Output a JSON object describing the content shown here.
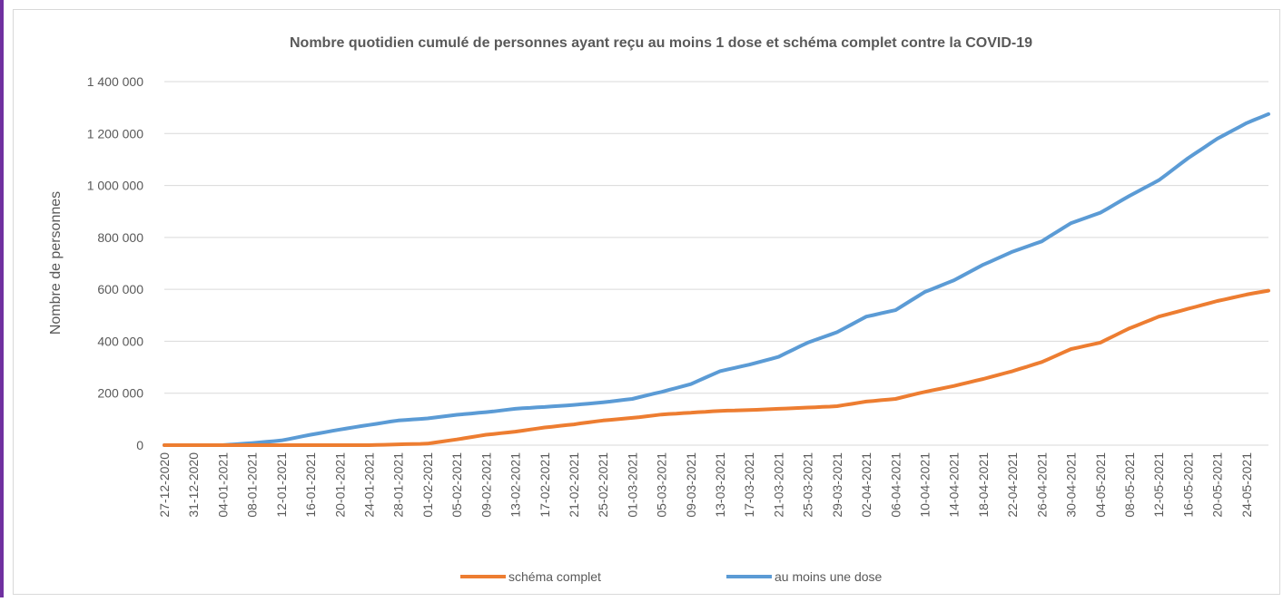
{
  "chart_data": {
    "type": "line",
    "title": "Nombre quotidien cumulé de personnes ayant reçu au moins 1 dose et schéma complet contre la COVID-19",
    "y_label": "Nombre de personnes",
    "categories": [
      "27-12-2020",
      null,
      null,
      null,
      "31-12-2020",
      null,
      null,
      null,
      "04-01-2021",
      null,
      null,
      null,
      "08-01-2021",
      null,
      null,
      null,
      "12-01-2021",
      null,
      null,
      null,
      "16-01-2021",
      null,
      null,
      null,
      "20-01-2021",
      null,
      null,
      null,
      "24-01-2021",
      null,
      null,
      null,
      "28-01-2021",
      null,
      null,
      null,
      "01-02-2021",
      null,
      null,
      null,
      "05-02-2021",
      null,
      null,
      null,
      "09-02-2021",
      null,
      null,
      null,
      "13-02-2021",
      null,
      null,
      null,
      "17-02-2021",
      null,
      null,
      null,
      "21-02-2021",
      null,
      null,
      null,
      "25-02-2021",
      null,
      null,
      null,
      "01-03-2021",
      null,
      null,
      null,
      "05-03-2021",
      null,
      null,
      null,
      "09-03-2021",
      null,
      null,
      null,
      "13-03-2021",
      null,
      null,
      null,
      "17-03-2021",
      null,
      null,
      null,
      "21-03-2021",
      null,
      null,
      null,
      "25-03-2021",
      null,
      null,
      null,
      "29-03-2021",
      null,
      null,
      null,
      "02-04-2021",
      null,
      null,
      null,
      "06-04-2021",
      null,
      null,
      null,
      "10-04-2021",
      null,
      null,
      null,
      "14-04-2021",
      null,
      null,
      null,
      "18-04-2021",
      null,
      null,
      null,
      "22-04-2021",
      null,
      null,
      null,
      "26-04-2021",
      null,
      null,
      null,
      "30-04-2021",
      null,
      null,
      null,
      "04-05-2021",
      null,
      null,
      null,
      "08-05-2021",
      null,
      null,
      null,
      "12-05-2021",
      null,
      null,
      null,
      "16-05-2021",
      null,
      null,
      null,
      "20-05-2021",
      null,
      null,
      null,
      "24-05-2021",
      null,
      null,
      null
    ],
    "series": [
      {
        "name": "schéma complet",
        "color": "#ed7d31",
        "values": [
          0,
          0,
          0,
          0,
          0,
          0,
          0,
          0,
          0,
          0,
          0,
          0,
          0,
          0,
          0,
          0,
          0,
          0,
          0,
          0,
          0,
          0,
          0,
          0,
          0,
          0,
          0,
          0,
          0,
          1000,
          1500,
          2000,
          3000,
          4000,
          4500,
          5000,
          6000,
          10000,
          14000,
          18000,
          22000,
          26500,
          31000,
          35500,
          40000,
          43000,
          46000,
          49000,
          52000,
          56000,
          60000,
          64000,
          68000,
          71000,
          74000,
          77000,
          80000,
          84000,
          87500,
          91500,
          95000,
          97500,
          100000,
          102500,
          105000,
          108000,
          111500,
          114500,
          118000,
          120000,
          121500,
          123500,
          125000,
          127000,
          128500,
          130500,
          132000,
          133000,
          133500,
          134500,
          135000,
          136000,
          137500,
          138500,
          140000,
          141000,
          142500,
          143500,
          145000,
          146000,
          147500,
          148500,
          150000,
          154500,
          159000,
          163500,
          168000,
          170500,
          173000,
          175500,
          178000,
          185000,
          191500,
          198500,
          205000,
          211000,
          216500,
          222500,
          228000,
          235000,
          241500,
          248500,
          255000,
          262500,
          270000,
          277500,
          285000,
          294000,
          302500,
          311500,
          320000,
          332500,
          345000,
          357500,
          370000,
          376000,
          382500,
          388500,
          395000,
          409000,
          422500,
          436500,
          450000,
          461000,
          472500,
          483500,
          495000,
          502500,
          510000,
          517500,
          525000,
          532500,
          540000,
          547500,
          555000,
          561000,
          567500,
          573500,
          580000,
          585000,
          590000,
          595000
        ]
      },
      {
        "name": "au moins une dose",
        "color": "#5b9bd5",
        "values": [
          0,
          0,
          0,
          0,
          0,
          0,
          0,
          0,
          0,
          2000,
          4000,
          6000,
          8000,
          10500,
          13000,
          15500,
          18000,
          23500,
          29000,
          34500,
          40000,
          45000,
          50000,
          55000,
          60000,
          64500,
          69000,
          73500,
          78000,
          82000,
          86500,
          91000,
          95000,
          97000,
          99000,
          101000,
          103000,
          106500,
          110000,
          113500,
          117000,
          119500,
          122000,
          124500,
          127000,
          130000,
          133500,
          137000,
          140000,
          142000,
          143500,
          145500,
          147000,
          149000,
          151000,
          153000,
          155000,
          157500,
          160000,
          162500,
          165000,
          168000,
          171500,
          175000,
          178000,
          185000,
          191500,
          198500,
          205000,
          212500,
          220000,
          227500,
          235000,
          247500,
          260000,
          272500,
          285000,
          291000,
          297500,
          304000,
          310000,
          317500,
          325000,
          332500,
          340000,
          354000,
          367500,
          381500,
          395000,
          405000,
          415000,
          425000,
          435000,
          450000,
          465000,
          480000,
          495000,
          501000,
          507500,
          514000,
          520000,
          537500,
          555000,
          572500,
          590000,
          601000,
          612500,
          624000,
          635000,
          650000,
          665000,
          680000,
          695000,
          707500,
          720000,
          732500,
          745000,
          755000,
          765000,
          775000,
          785000,
          802500,
          820000,
          837500,
          855000,
          865000,
          875000,
          885000,
          895000,
          911000,
          927500,
          944000,
          960000,
          975000,
          990000,
          1005000,
          1020000,
          1041000,
          1062500,
          1084000,
          1105000,
          1124000,
          1142500,
          1161500,
          1180000,
          1195000,
          1210000,
          1225000,
          1240000,
          1252000,
          1263000,
          1275000
        ]
      }
    ],
    "ylim": [
      0,
      1400000
    ],
    "yticks": [
      0,
      {
        "value": 200000,
        "label": "200 000"
      },
      {
        "value": 400000,
        "label": "400 000"
      },
      {
        "value": 600000,
        "label": "600 000"
      },
      {
        "value": 800000,
        "label": "800 000"
      },
      {
        "value": 1000000,
        "label": "1 000 000"
      },
      {
        "value": 1200000,
        "label": "1 200 000"
      },
      {
        "value": 1400000,
        "label": "1 400 000"
      }
    ],
    "grid": true,
    "legend": "bottom"
  }
}
